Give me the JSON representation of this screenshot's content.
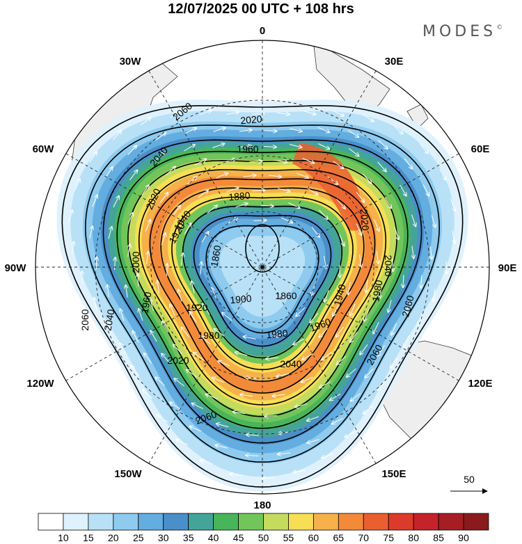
{
  "title": "12/07/2025  00 UTC  + 108 hrs",
  "brand": "MODES",
  "brand_mark": "©",
  "longitude_labels": {
    "n": "0",
    "e30": "30E",
    "e60": "60E",
    "e90": "90E",
    "e120": "120E",
    "e150": "150E",
    "s": "180",
    "w150": "150W",
    "w120": "120W",
    "w90": "90W",
    "w60": "60W",
    "w30": "30W"
  },
  "contour_labels": [
    "2060",
    "2060",
    "2060",
    "2060",
    "2060",
    "2040",
    "2040",
    "2040",
    "2040",
    "2020",
    "2020",
    "2020",
    "2020",
    "2000",
    "1980",
    "1980",
    "1980",
    "1960",
    "1960",
    "1960",
    "1940",
    "1940",
    "1920",
    "1920",
    "1900",
    "1880",
    "1860",
    "1860"
  ],
  "reference_vector": {
    "label": "50"
  },
  "colorbar": {
    "labels": [
      "10",
      "15",
      "20",
      "25",
      "30",
      "35",
      "40",
      "45",
      "50",
      "55",
      "60",
      "65",
      "70",
      "75",
      "80",
      "85",
      "90"
    ],
    "colors": [
      "#ffffff",
      "#dff1fc",
      "#b8e1f7",
      "#8fcbef",
      "#63ade0",
      "#4a8fc9",
      "#45a49a",
      "#49b55a",
      "#72c55a",
      "#c4db5e",
      "#f6de55",
      "#f6b14b",
      "#f28a3a",
      "#ea5f30",
      "#dc3b2b",
      "#c4232a",
      "#a61e24",
      "#8b1a1c"
    ]
  },
  "map_colors": {
    "land": "#eeeeee",
    "coast": "#333333",
    "grid": "#222222"
  }
}
